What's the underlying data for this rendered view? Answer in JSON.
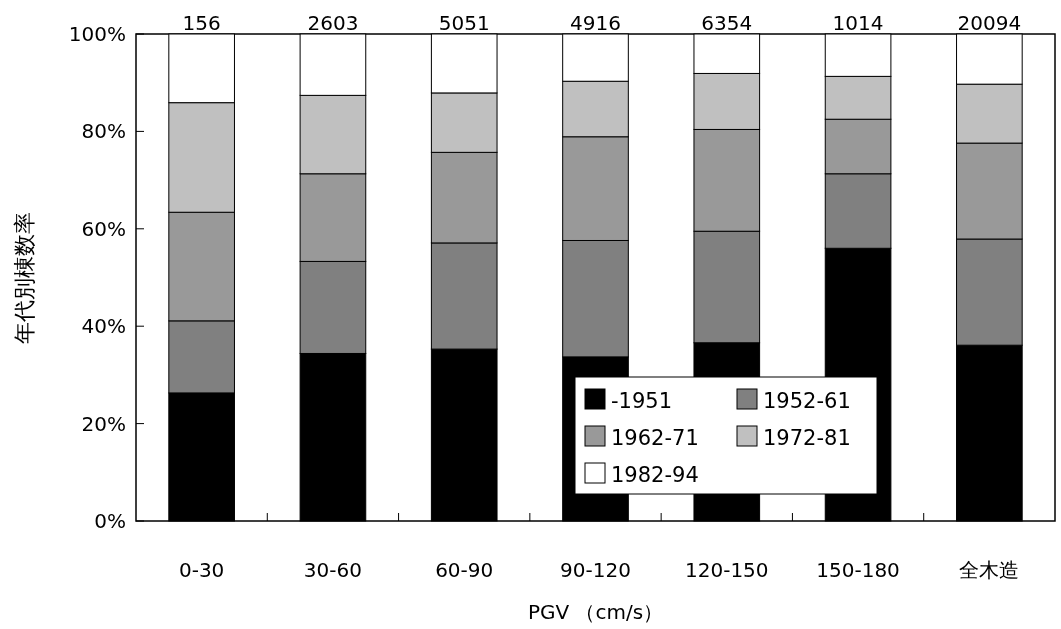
{
  "chart_data": {
    "type": "bar",
    "stacked": true,
    "categories": [
      "0-30",
      "30-60",
      "60-90",
      "90-120",
      "120-150",
      "150-180",
      "全木造"
    ],
    "series": [
      {
        "name": "-1951",
        "color": "#000000",
        "values": [
          26.3,
          34.4,
          35.3,
          33.7,
          36.6,
          56.0,
          36.1
        ]
      },
      {
        "name": "1952-61",
        "color": "#808080",
        "values": [
          14.8,
          18.9,
          21.8,
          23.9,
          22.9,
          15.3,
          21.8
        ]
      },
      {
        "name": "1962-71",
        "color": "#999999",
        "values": [
          22.3,
          18.0,
          18.6,
          21.3,
          20.9,
          11.2,
          19.7
        ]
      },
      {
        "name": "1972-81",
        "color": "#c0c0c0",
        "values": [
          22.5,
          16.1,
          12.2,
          11.4,
          11.5,
          8.8,
          12.1
        ]
      },
      {
        "name": "1982-94",
        "color": "#ffffff",
        "values": [
          14.1,
          12.6,
          12.1,
          9.7,
          8.1,
          8.7,
          10.3
        ]
      }
    ],
    "ylim": [
      0,
      100
    ],
    "yticks": [
      {
        "value": 0,
        "label": "0%"
      },
      {
        "value": 20,
        "label": "20%"
      },
      {
        "value": 40,
        "label": "40%"
      },
      {
        "value": 60,
        "label": "60%"
      },
      {
        "value": 80,
        "label": "80%"
      },
      {
        "value": 100,
        "label": "100%"
      }
    ],
    "xlabel": "PGV （cm/s）",
    "ylabel": "年代別棟数率",
    "annotations": [
      {
        "text": "156",
        "x": "0-30",
        "y": 100
      },
      {
        "text": "2603",
        "x": "30-60",
        "y": 100
      },
      {
        "text": "5051",
        "x": "60-90",
        "y": 100
      },
      {
        "text": "4916",
        "x": "90-120",
        "y": 100
      },
      {
        "text": "6354",
        "x": "120-150",
        "y": 100
      },
      {
        "text": "1014",
        "x": "150-180",
        "y": 100
      },
      {
        "text": "20094",
        "x": "全木造",
        "y": 100
      }
    ],
    "legend": "bottom right"
  }
}
